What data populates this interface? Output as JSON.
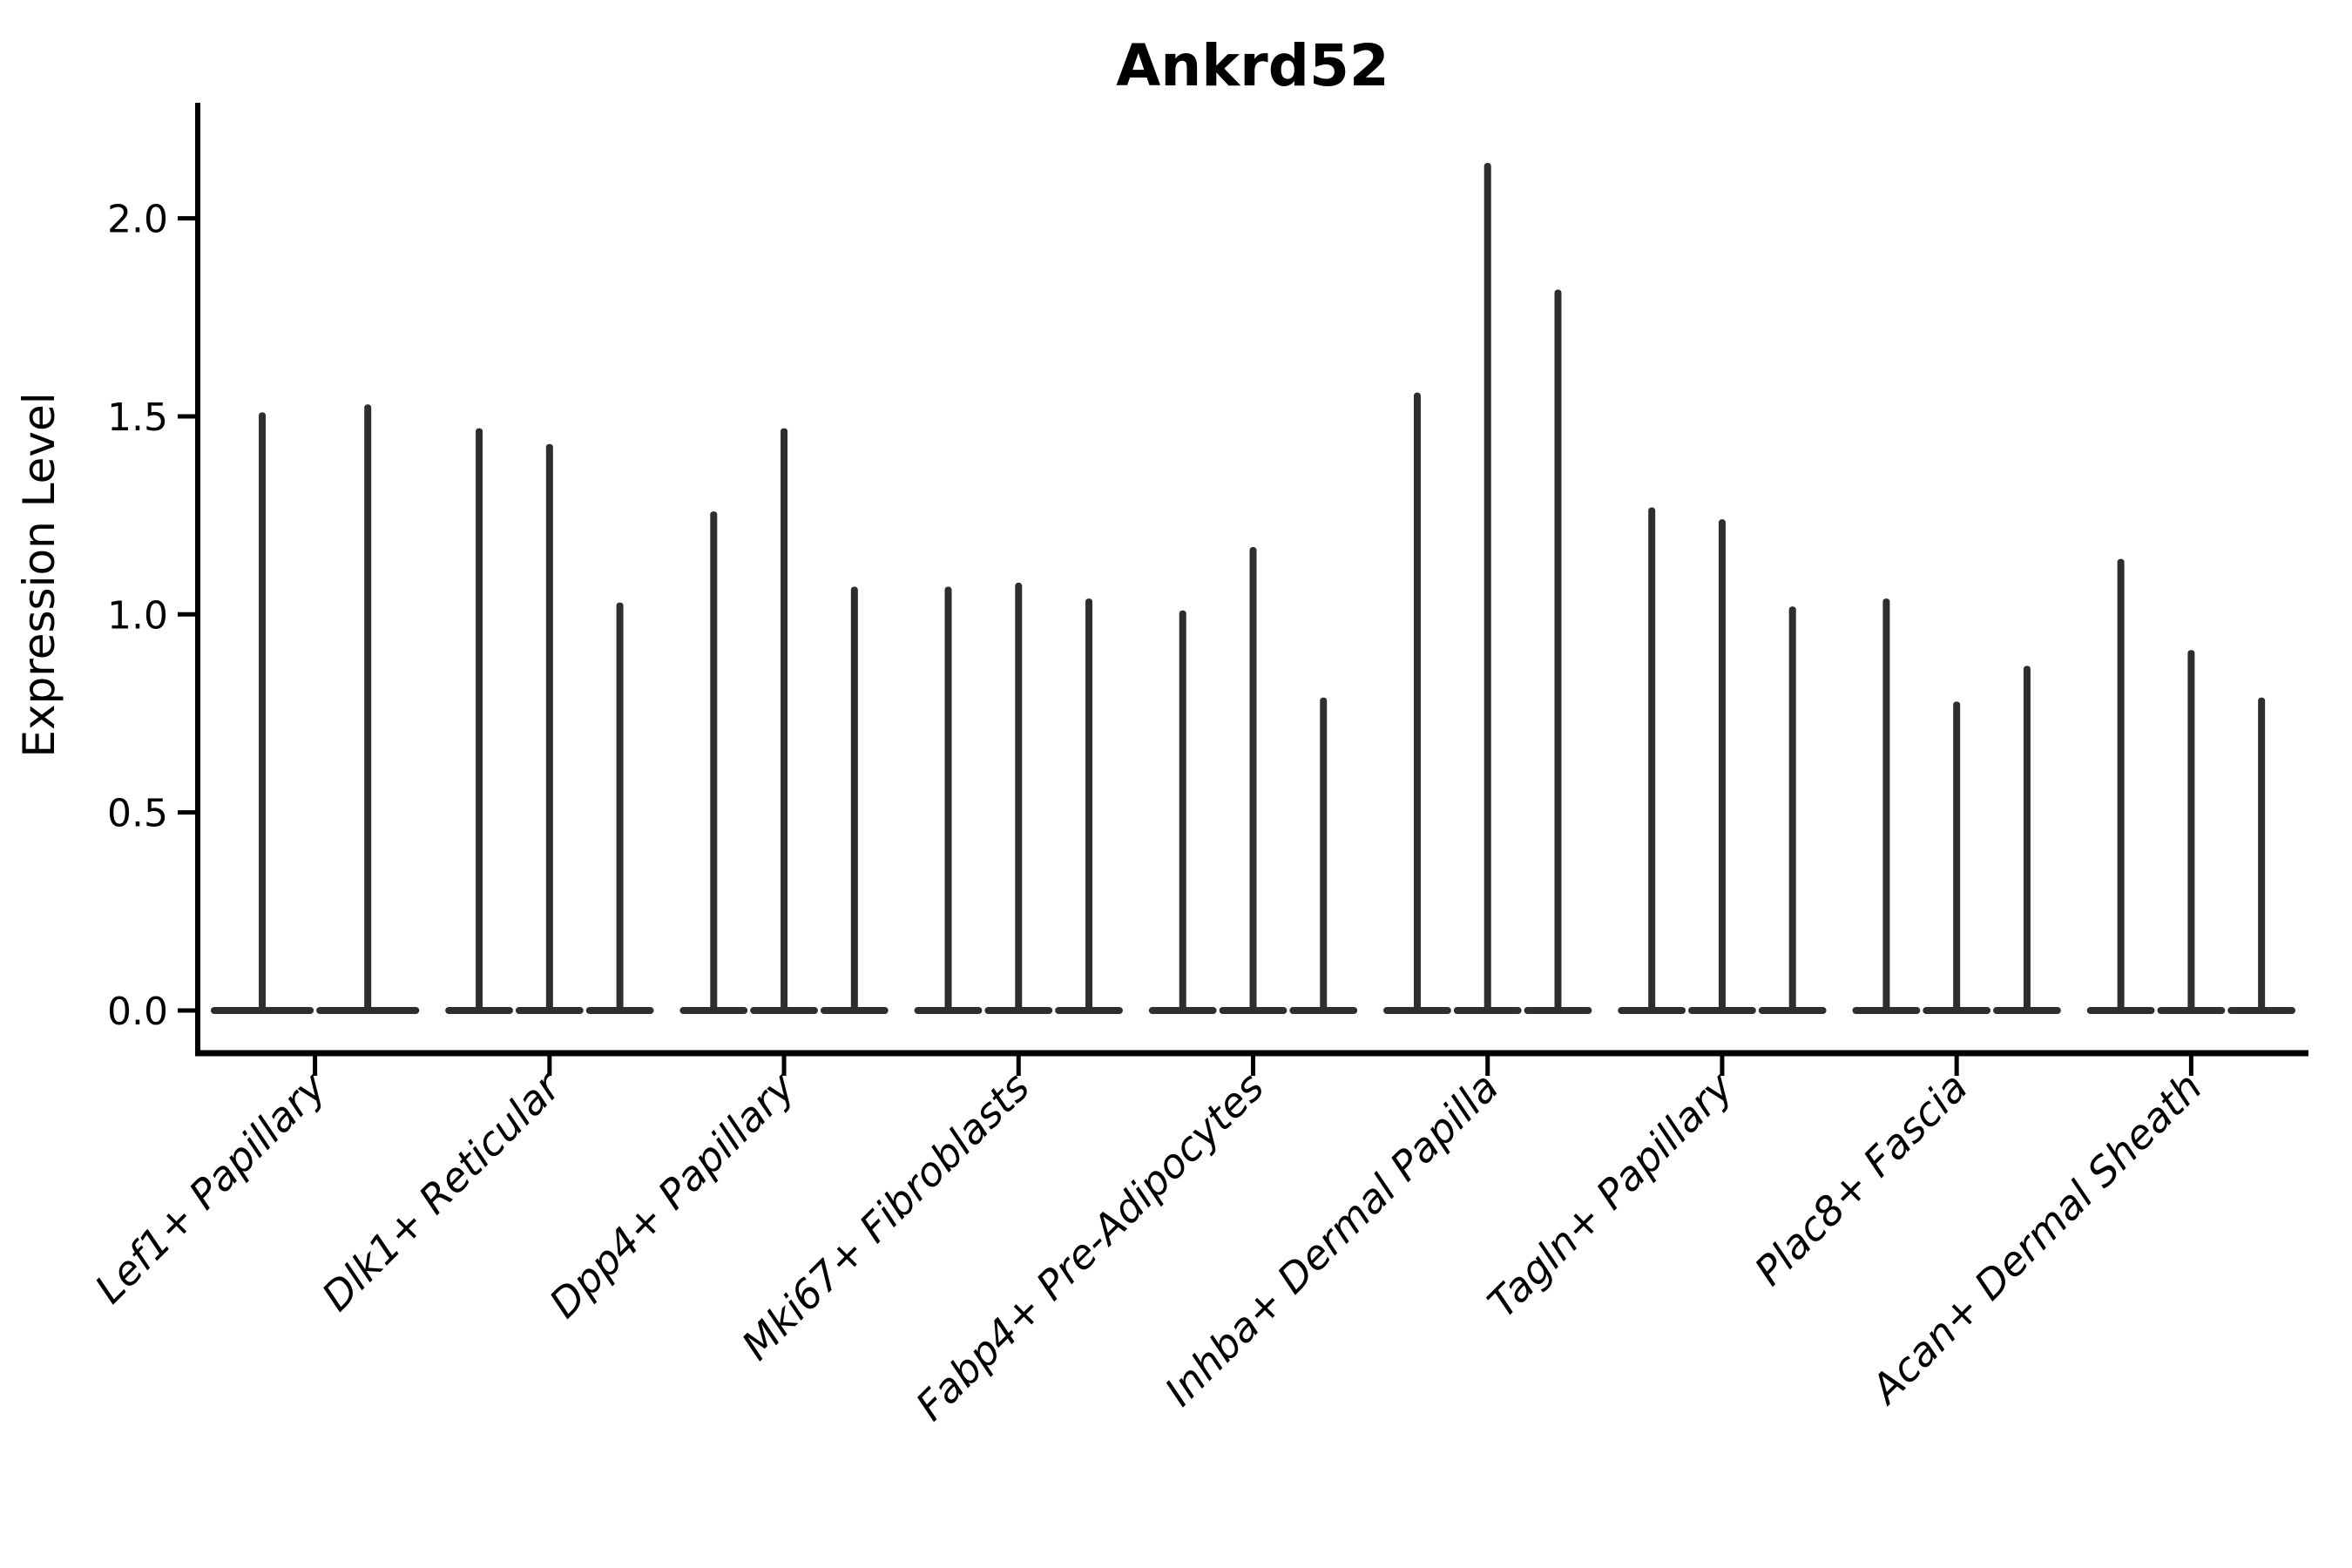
{
  "chart_data": {
    "type": "violin",
    "title": "Ankrd52",
    "xlabel": "",
    "ylabel": "Expression Level",
    "yticks": [
      "0.0",
      "0.5",
      "1.0",
      "1.5",
      "2.0"
    ],
    "ytick_values": [
      0.0,
      0.5,
      1.0,
      1.5,
      2.0
    ],
    "ylim": [
      -0.11,
      2.29
    ],
    "grid": false,
    "legend": null,
    "baseline_value": 0.0,
    "violin_color": "#2e2e2e",
    "axis_color": "#000000",
    "background_color": "#ffffff",
    "description": "Violin plot of Ankrd52 expression per cell type; expression is sparse so each violin collapses to a flat base at 0 with a thin spike up to its maximum value.",
    "categories": [
      {
        "label": "Lef1+ Papillary",
        "violin_maxima": [
          1.51,
          1.53
        ]
      },
      {
        "label": "Dlk1+ Reticular",
        "violin_maxima": [
          1.47,
          1.43,
          1.03
        ]
      },
      {
        "label": "Dpp4+ Papillary",
        "violin_maxima": [
          1.26,
          1.47,
          1.07
        ]
      },
      {
        "label": "Mki67+ Fibroblasts",
        "violin_maxima": [
          1.07,
          1.08,
          1.04
        ]
      },
      {
        "label": "Fabp4+ Pre-Adipocytes",
        "violin_maxima": [
          1.01,
          1.17,
          0.79
        ]
      },
      {
        "label": "Inhba+ Dermal Papilla",
        "violin_maxima": [
          1.56,
          2.14,
          1.82
        ]
      },
      {
        "label": "Tagln+ Papillary",
        "violin_maxima": [
          1.27,
          1.24,
          1.02
        ]
      },
      {
        "label": "Plac8+ Fascia",
        "violin_maxima": [
          1.04,
          0.78,
          0.87
        ]
      },
      {
        "label": "Acan+ Dermal Sheath",
        "violin_maxima": [
          1.14,
          0.91,
          0.79
        ]
      }
    ]
  }
}
